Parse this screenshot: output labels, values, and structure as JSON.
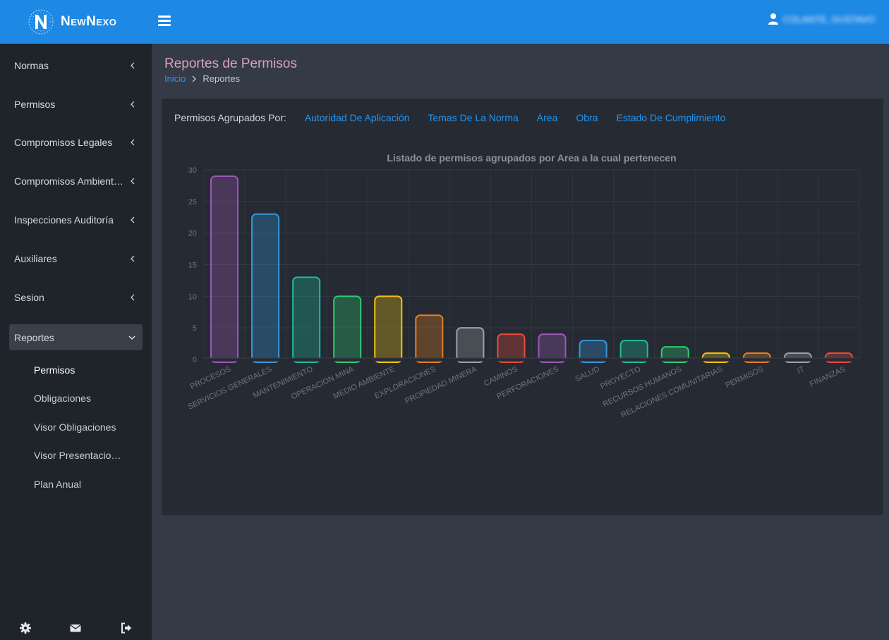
{
  "header": {
    "brand": "NewNexo",
    "user_name": "COLANTE, GUSTAVO"
  },
  "sidebar": {
    "items": [
      {
        "label": "Normas"
      },
      {
        "label": "Permisos"
      },
      {
        "label": "Compromisos Legales"
      },
      {
        "label": "Compromisos Ambient…"
      },
      {
        "label": "Inspecciones Auditoría"
      },
      {
        "label": "Auxiliares"
      },
      {
        "label": "Sesion"
      },
      {
        "label": "Reportes"
      }
    ],
    "subitems": [
      {
        "label": "Permisos"
      },
      {
        "label": "Obligaciones"
      },
      {
        "label": "Visor Obligaciones"
      },
      {
        "label": "Visor Presentacio…"
      },
      {
        "label": "Plan Anual"
      }
    ]
  },
  "page": {
    "title": "Reportes de Permisos",
    "breadcrumb_home": "Inicio",
    "breadcrumb_current": "Reportes"
  },
  "grouping": {
    "label": "Permisos Agrupados Por:",
    "options": [
      "Autoridad De Aplicación",
      "Temas De La Norma",
      "Área",
      "Obra",
      "Estado De Cumplimiento"
    ]
  },
  "chart_data": {
    "type": "bar",
    "title": "Listado de permisos agrupados por Area a la cual pertenecen",
    "categories": [
      "PROCESOS",
      "SERVICIOS GENERALES",
      "MANTENIMIENTO",
      "OPERACION MINA",
      "MEDIO AMBIENTE",
      "EXPLORACIONES",
      "PROPIEDAD MINERA",
      "CAMINOS",
      "PERFORACIONES",
      "SALUD",
      "PROYECTO",
      "RECURSOS HUMANOS",
      "RELACIONES COMUNITARIAS",
      "PERMISOS",
      "IT",
      "FINANZAS"
    ],
    "values": [
      29,
      23,
      13,
      10,
      10,
      7,
      5,
      4,
      4,
      3,
      3,
      2,
      1,
      1,
      1,
      1
    ],
    "colors": [
      "#9b59b6",
      "#3498db",
      "#1abc9c",
      "#2ecc71",
      "#f1c40f",
      "#e67e22",
      "#95a5a6",
      "#e74c3c",
      "#9b59b6",
      "#3498db",
      "#1abc9c",
      "#2ecc71",
      "#f1c40f",
      "#e67e22",
      "#95a5a6",
      "#e74c3c"
    ],
    "ylim": [
      0,
      30
    ],
    "yticks": [
      0,
      5,
      10,
      15,
      20,
      25,
      30
    ],
    "grid": true,
    "legend": "none"
  }
}
